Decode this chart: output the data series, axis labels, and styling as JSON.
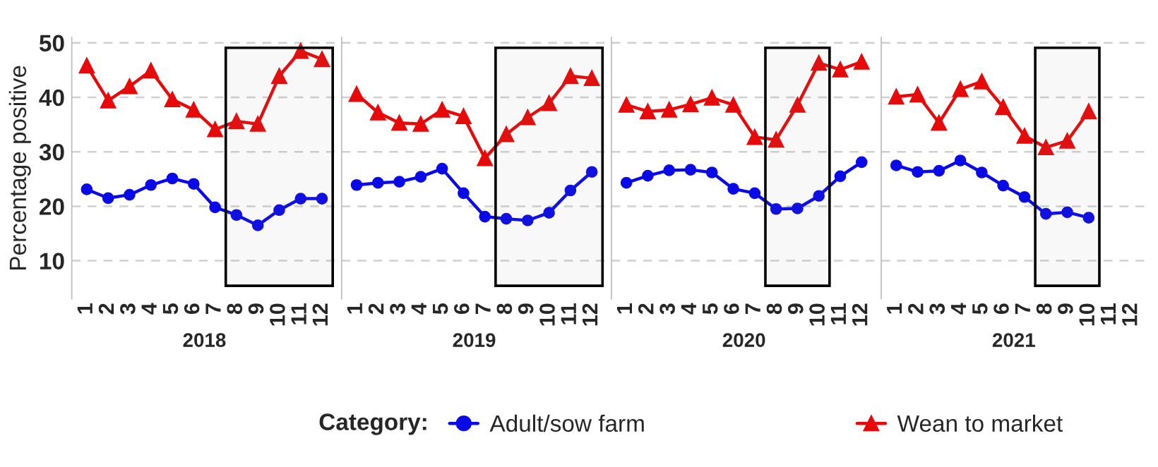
{
  "chart_data": [
    {
      "type": "line",
      "xlabel": "2018",
      "ylabel": "Percentage positive",
      "categories": [
        "1",
        "2",
        "3",
        "4",
        "5",
        "6",
        "7",
        "8",
        "9",
        "10",
        "11",
        "12"
      ],
      "ylim": [
        3,
        51
      ],
      "yticks": [
        10,
        20,
        30,
        40,
        50
      ],
      "grid": "y",
      "legend": "bottom",
      "legend_title": "Category:",
      "series": [
        {
          "name": "Adult/sow farm",
          "color": "#0a0ae6",
          "marker": "circle",
          "values": [
            23.1,
            21.5,
            22.1,
            23.9,
            25.1,
            24.1,
            19.8,
            18.4,
            16.5,
            19.3,
            21.4,
            21.4
          ]
        },
        {
          "name": "Wean to market",
          "color": "#e60a0a",
          "marker": "triangle",
          "values": [
            45.8,
            39.4,
            42.0,
            44.9,
            39.6,
            37.7,
            34.1,
            35.6,
            35.1,
            43.9,
            48.5,
            47.0
          ]
        }
      ],
      "bands": [
        {
          "axis": "x",
          "from": "8",
          "to": "12"
        }
      ]
    },
    {
      "type": "line",
      "xlabel": "2019",
      "categories": [
        "1",
        "2",
        "3",
        "4",
        "5",
        "6",
        "7",
        "8",
        "9",
        "10",
        "11",
        "12"
      ],
      "ylim": [
        3,
        51
      ],
      "grid": "y",
      "tick_labels": "x",
      "series": [
        {
          "color": "#0a0ae6",
          "marker": "circle",
          "values": [
            23.9,
            24.3,
            24.5,
            25.4,
            26.9,
            22.4,
            18.1,
            17.7,
            17.4,
            18.8,
            22.9,
            26.3
          ]
        },
        {
          "color": "#e60a0a",
          "marker": "triangle",
          "values": [
            40.6,
            37.2,
            35.3,
            35.1,
            37.7,
            36.5,
            28.8,
            33.2,
            36.3,
            38.9,
            43.9,
            43.5
          ]
        }
      ],
      "bands": [
        {
          "axis": "x",
          "from": "8",
          "to": "12"
        }
      ]
    },
    {
      "type": "line",
      "xlabel": "2020",
      "categories": [
        "1",
        "2",
        "3",
        "4",
        "5",
        "6",
        "7",
        "8",
        "9",
        "10",
        "11",
        "12"
      ],
      "ylim": [
        3,
        51
      ],
      "grid": "y",
      "tick_labels": "x",
      "series": [
        {
          "color": "#0a0ae6",
          "marker": "circle",
          "values": [
            24.3,
            25.6,
            26.6,
            26.7,
            26.2,
            23.2,
            22.4,
            19.5,
            19.6,
            21.9,
            25.5,
            28.1
          ]
        },
        {
          "color": "#e60a0a",
          "marker": "triangle",
          "values": [
            38.6,
            37.4,
            37.7,
            38.7,
            39.9,
            38.6,
            32.7,
            32.2,
            38.6,
            46.3,
            45.1,
            46.5
          ]
        }
      ],
      "bands": [
        {
          "axis": "x",
          "from": "8",
          "to": "10"
        }
      ]
    },
    {
      "type": "line",
      "xlabel": "2021",
      "categories": [
        "1",
        "2",
        "3",
        "4",
        "5",
        "6",
        "7",
        "8",
        "9",
        "10",
        "11",
        "12"
      ],
      "ylim": [
        3,
        51
      ],
      "grid": "y",
      "tick_labels": "x",
      "series": [
        {
          "color": "#0a0ae6",
          "marker": "circle",
          "values": [
            27.5,
            26.3,
            26.5,
            28.4,
            26.2,
            23.8,
            21.7,
            18.6,
            18.9,
            17.9,
            null,
            null
          ]
        },
        {
          "color": "#e60a0a",
          "marker": "triangle",
          "values": [
            40.1,
            40.5,
            35.3,
            41.5,
            42.9,
            38.2,
            32.9,
            30.8,
            32.0,
            37.4,
            null,
            null
          ]
        }
      ],
      "bands": [
        {
          "axis": "x",
          "from": "8",
          "to": "10"
        }
      ]
    }
  ]
}
